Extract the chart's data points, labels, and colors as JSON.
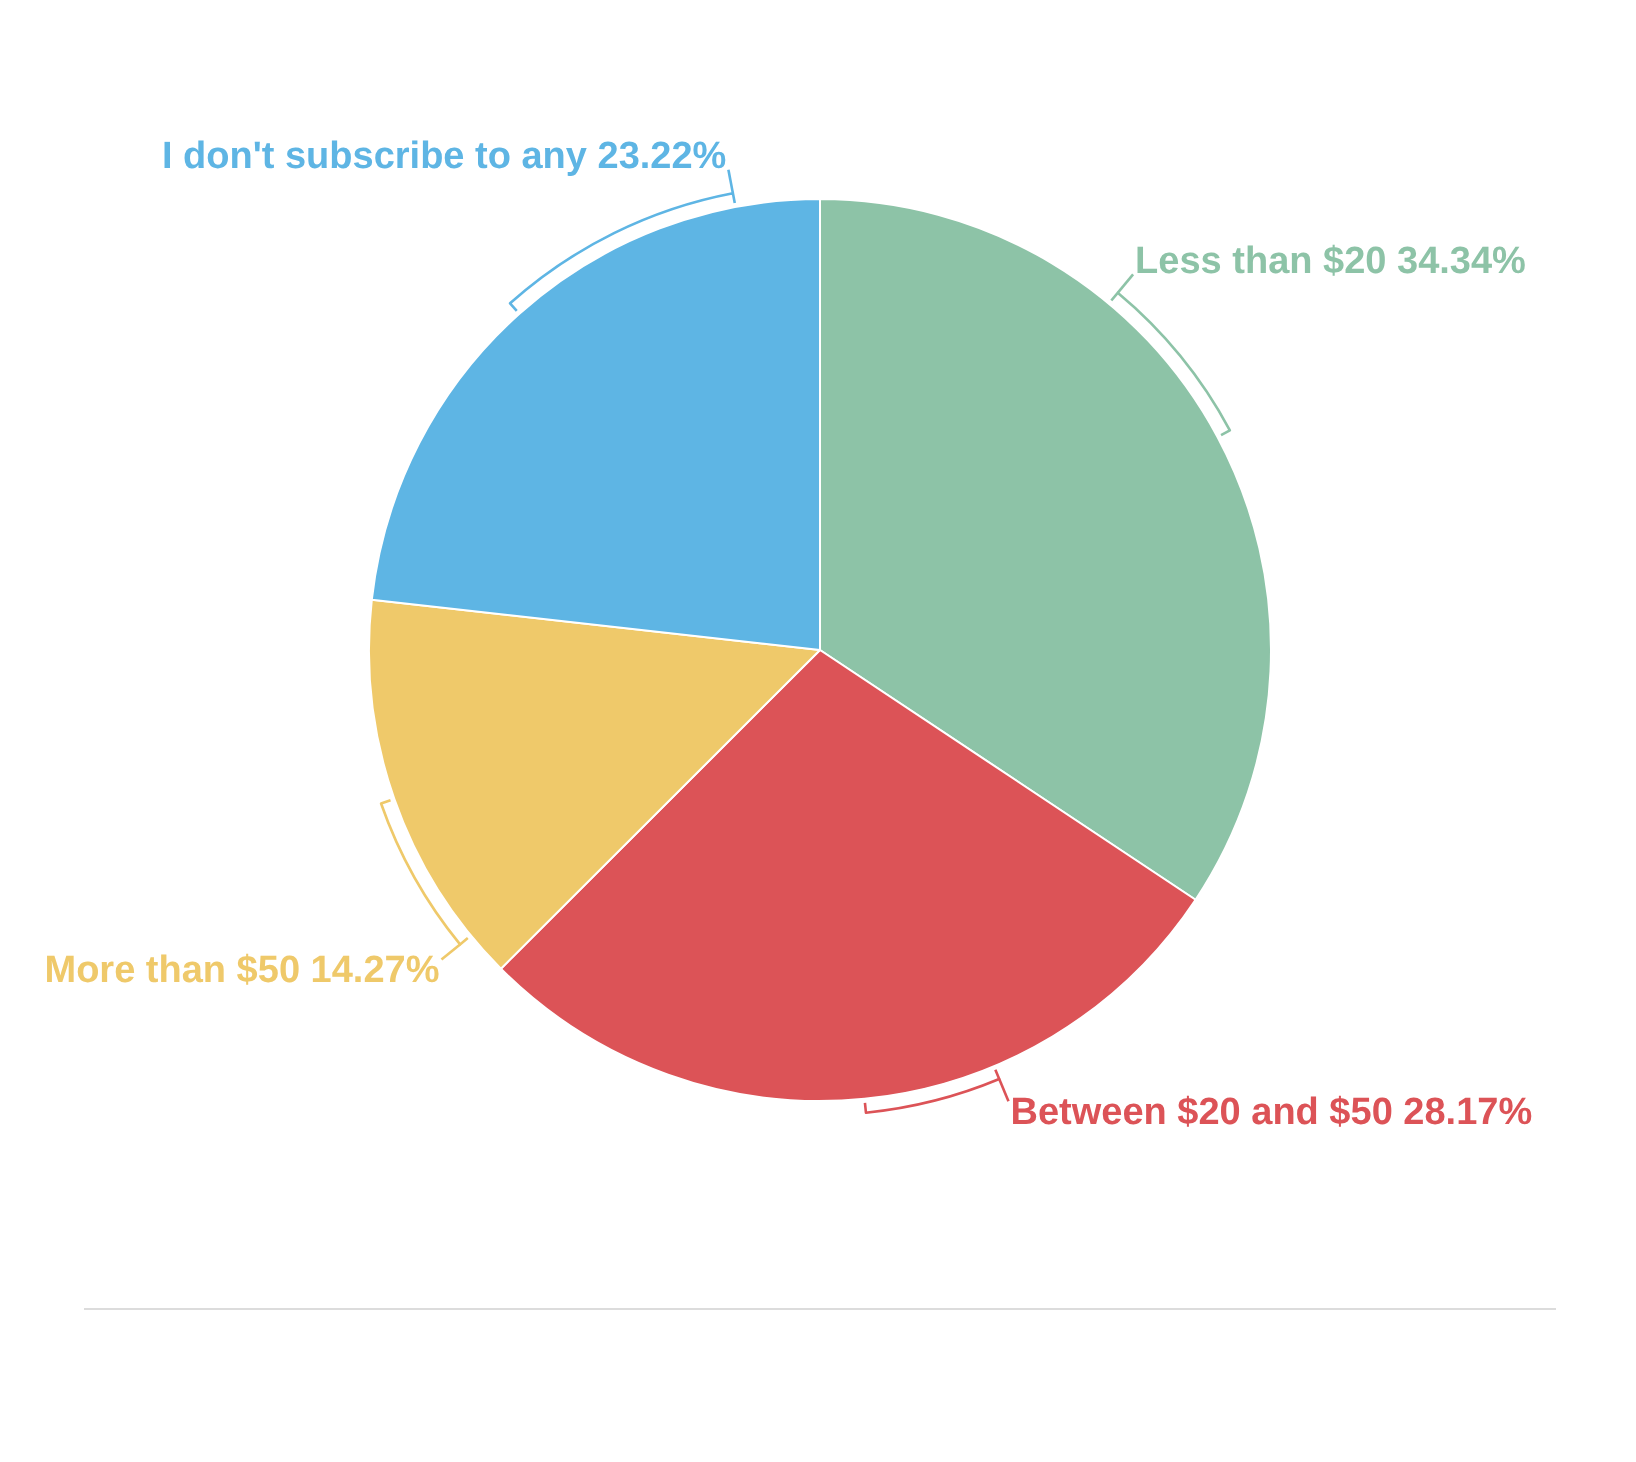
{
  "chart_data": {
    "type": "pie",
    "categories": [
      "Less than $20",
      "Between $20 and $50",
      "More than $50",
      "I don't subscribe to any"
    ],
    "values": [
      34.34,
      28.17,
      14.27,
      23.22
    ],
    "colors": [
      "#8dc3a7",
      "#dc5357",
      "#efc96a",
      "#5eb5e4"
    ],
    "value_labels": [
      "34.34%",
      "28.17%",
      "14.27%",
      "23.22%"
    ]
  }
}
